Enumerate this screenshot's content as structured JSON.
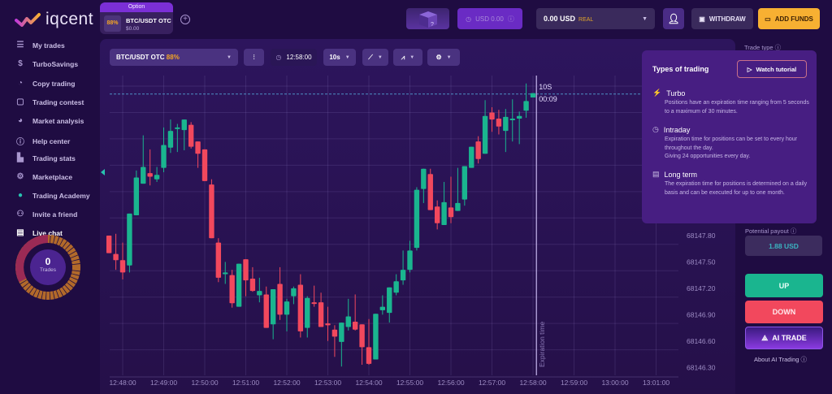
{
  "brand": {
    "name": "iqcent"
  },
  "asset_tab": {
    "header": "Option",
    "payout": "88%",
    "name": "BTC/USDT OTC",
    "amount": "$0.00"
  },
  "header": {
    "bonus_balance": "USD 0.00",
    "balance": "0.00 USD",
    "account_type": "REAL",
    "withdraw": "WITHDRAW",
    "add_funds": "ADD FUNDS"
  },
  "sidebar": {
    "items": [
      {
        "label": "My trades",
        "icon": "list-icon"
      },
      {
        "label": "TurboSavings",
        "icon": "piggy-bank-icon"
      },
      {
        "label": "Copy trading",
        "icon": "copy-icon"
      },
      {
        "label": "Trading contest",
        "icon": "trophy-icon"
      },
      {
        "label": "Market analysis",
        "icon": "pie-chart-icon"
      },
      {
        "label": "Help center",
        "icon": "info-icon"
      },
      {
        "label": "Trading stats",
        "icon": "bar-chart-icon"
      },
      {
        "label": "Marketplace",
        "icon": "shop-icon"
      },
      {
        "label": "Trading Academy",
        "icon": "academy-icon"
      },
      {
        "label": "Invite a friend",
        "icon": "friends-icon"
      },
      {
        "label": "Live chat",
        "icon": "chat-icon"
      }
    ],
    "trades_count": "0",
    "trades_label": "Trades"
  },
  "toolbar": {
    "asset": "BTC/USDT OTC",
    "asset_payout": "88%",
    "clock": "12:58:00",
    "timeframe": "10s"
  },
  "chart_overlay": {
    "timer_label": "10S",
    "countdown": "00:09",
    "expiration_label": "Expiration time"
  },
  "right_panel": {
    "trade_type_label": "Trade type",
    "potential_payout_label": "Potential payout",
    "potential_payout": "1.88 USD",
    "up": "UP",
    "down": "DOWN",
    "ai_trade": "AI TRADE",
    "about_ai": "About AI Trading"
  },
  "popup": {
    "title": "Types of trading",
    "watch": "Watch tutorial",
    "sections": [
      {
        "title": "Turbo",
        "icon": "lightning-icon",
        "text": "Positions have an expiration time ranging from 5 seconds to a maximum of 30 minutes."
      },
      {
        "title": "Intraday",
        "icon": "stopwatch-icon",
        "text": "Expiration time for positions can be set to every hour throughout the day.\nGiving 24 opportunities every day."
      },
      {
        "title": "Long term",
        "icon": "calendar-icon",
        "text": "The expiration time for positions is determined on a daily basis and can be executed for up to one month."
      }
    ]
  },
  "colors": {
    "up": "#1ab58f",
    "down": "#f2485d",
    "accent": "#7b2fd6",
    "add_funds": "#f7b032",
    "payout": "#f5a623"
  },
  "chart_data": {
    "type": "candlestick",
    "interval": "10s",
    "first_candle_time": "12:47:40",
    "candles_ohlc": [
      [
        68147.8,
        68147.8,
        68147.6,
        68147.6
      ],
      [
        68147.59,
        68147.82,
        68147.41,
        68147.52
      ],
      [
        68147.52,
        68147.72,
        68147.3,
        68147.38
      ],
      [
        68147.46,
        68148.05,
        68147.38,
        68148.05
      ],
      [
        68148.03,
        68148.54,
        68148.03,
        68148.46
      ],
      [
        68148.39,
        68148.94,
        68148.39,
        68148.58
      ],
      [
        68148.51,
        68148.78,
        68148.37,
        68148.47
      ],
      [
        68148.44,
        68148.58,
        68148.41,
        68148.49
      ],
      [
        68148.57,
        68149.03,
        68148.52,
        68148.83
      ],
      [
        68148.8,
        68149.12,
        68148.74,
        68148.99
      ],
      [
        68149.02,
        68149.07,
        68148.75,
        68149.03
      ],
      [
        68149.0,
        68149.12,
        68148.77,
        68149.12
      ],
      [
        68149.06,
        68149.09,
        68148.79,
        68148.81
      ],
      [
        68148.87,
        68148.87,
        68148.57,
        68148.73
      ],
      [
        68148.78,
        68148.78,
        68148.42,
        68148.42
      ],
      [
        68148.38,
        68148.44,
        68147.77,
        68147.77
      ],
      [
        68147.72,
        68147.77,
        68147.27,
        68147.32
      ],
      [
        68147.36,
        68147.5,
        68147.25,
        68147.38
      ],
      [
        68147.35,
        68147.41,
        68146.98,
        68147.03
      ],
      [
        68146.99,
        68147.48,
        68146.99,
        68147.48
      ],
      [
        68147.53,
        68147.53,
        68147.11,
        68147.29
      ],
      [
        68147.31,
        68147.44,
        68147.16,
        68147.17
      ],
      [
        68147.12,
        68147.32,
        68147.04,
        68147.17
      ],
      [
        68147.13,
        68147.22,
        68146.75,
        68146.75
      ],
      [
        68146.79,
        68147.19,
        68146.62,
        68147.19
      ],
      [
        68147.25,
        68147.44,
        68146.84,
        68146.9
      ],
      [
        68146.9,
        68147.08,
        68146.71,
        68147.05
      ],
      [
        68147.11,
        68147.22,
        68147.02,
        68147.2
      ],
      [
        68147.24,
        68147.36,
        68146.64,
        68146.71
      ],
      [
        68146.75,
        68147.11,
        68146.64,
        68147.09
      ],
      [
        68147.04,
        68147.23,
        68146.99,
        68147.03
      ],
      [
        68147.04,
        68147.15,
        68146.76,
        68146.76
      ],
      [
        68146.8,
        68146.99,
        68146.6,
        68146.78
      ],
      [
        68146.73,
        68146.78,
        68146.42,
        68146.65
      ],
      [
        68146.59,
        68146.81,
        68146.31,
        68146.81
      ],
      [
        68146.76,
        68147.08,
        68146.72,
        68146.88
      ],
      [
        68146.82,
        68147.13,
        68146.72,
        68146.73
      ],
      [
        68146.79,
        68146.79,
        68146.33,
        68146.53
      ],
      [
        68146.53,
        68146.85,
        68146.33,
        68146.34
      ],
      [
        68146.39,
        68146.91,
        68146.39,
        68146.91
      ],
      [
        68146.95,
        68147.12,
        68146.9,
        68146.99
      ],
      [
        68146.92,
        68147.21,
        68146.81,
        68147.21
      ],
      [
        68147.15,
        68147.36,
        68147.12,
        68147.28
      ],
      [
        68147.29,
        68147.63,
        68147.24,
        68147.41
      ],
      [
        68147.41,
        68147.74,
        68147.38,
        68147.63
      ],
      [
        68147.66,
        68148.35,
        68147.63,
        68148.32
      ],
      [
        68148.33,
        68148.56,
        68148.17,
        68148.56
      ],
      [
        68148.5,
        68148.56,
        68148.09,
        68148.09
      ],
      [
        68148.13,
        68148.2,
        68147.87,
        68147.94
      ],
      [
        68147.92,
        68148.41,
        68147.92,
        68148.18
      ],
      [
        68148.12,
        68148.47,
        68147.94,
        68148.01
      ],
      [
        68148.08,
        68148.57,
        68148.08,
        68148.17
      ],
      [
        68148.21,
        68148.59,
        68148.14,
        68148.59
      ],
      [
        68148.57,
        68148.81,
        68148.57,
        68148.81
      ],
      [
        68148.87,
        68148.93,
        68148.62,
        68148.67
      ],
      [
        68148.73,
        68149.34,
        68148.73,
        68149.16
      ],
      [
        68149.2,
        68149.26,
        68148.98,
        68149.12
      ],
      [
        68149.13,
        68149.23,
        68148.95,
        68149.04
      ],
      [
        68148.99,
        68149.24,
        68148.75,
        68149.15
      ],
      [
        68149.12,
        68149.35,
        68148.87,
        68149.13
      ],
      [
        68149.13,
        68149.21,
        68148.84,
        68149.16
      ],
      [
        68149.22,
        68149.53,
        68149.14,
        68149.33
      ],
      [
        68149.37,
        68149.42,
        68149.37,
        68149.42
      ]
    ],
    "current_price": 68149.41,
    "expiration_time": "12:58:05",
    "y_ticks": [
      "68147.80",
      "68147.50",
      "68147.20",
      "68146.90",
      "68146.60",
      "68146.30"
    ],
    "x_ticks": [
      "12:48:00",
      "12:49:00",
      "12:50:00",
      "12:51:00",
      "12:52:00",
      "12:53:00",
      "12:54:00",
      "12:55:00",
      "12:56:00",
      "12:57:00",
      "12:58:00",
      "12:59:00",
      "13:00:00",
      "13:01:00"
    ],
    "ylim": [
      68146.21,
      68149.62
    ],
    "y_grid_step": 0.3,
    "grid": true
  }
}
